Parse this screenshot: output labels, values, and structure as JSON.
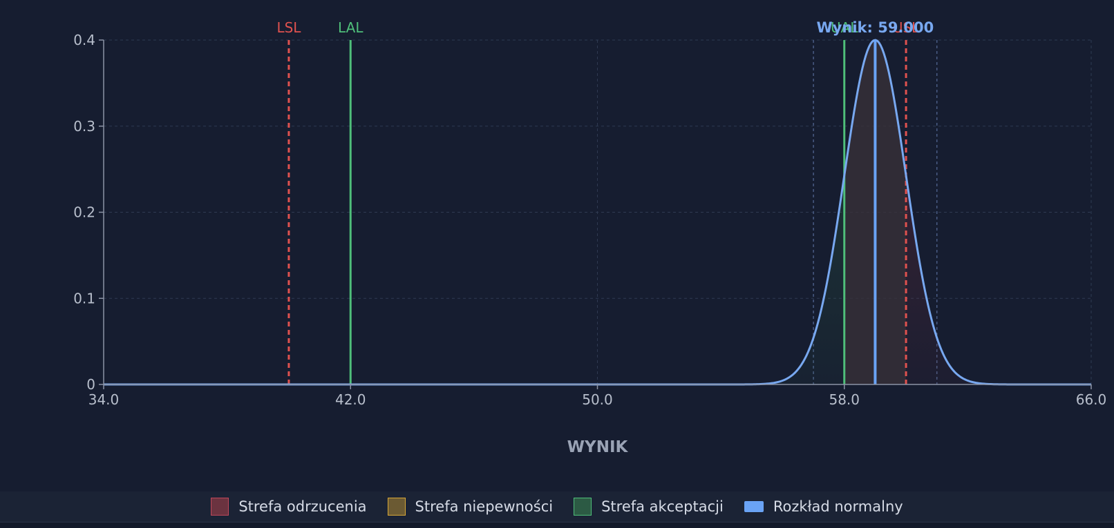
{
  "chart_data": {
    "type": "line",
    "title": "",
    "xlabel": "WYNIK",
    "ylabel": "",
    "xlim": [
      34,
      66
    ],
    "ylim": [
      0,
      0.4
    ],
    "x_ticks": [
      "34.0",
      "42.0",
      "50.0",
      "58.0",
      "66.0"
    ],
    "x_tick_values": [
      34,
      42,
      50,
      58,
      66
    ],
    "y_ticks": [
      "0",
      "0.1",
      "0.2",
      "0.3",
      "0.4"
    ],
    "y_tick_values": [
      0,
      0.1,
      0.2,
      0.3,
      0.4
    ],
    "grid": true,
    "distribution": {
      "mean": 59.0,
      "sigma": 1.0,
      "peak": 0.4
    },
    "result_label": "Wynik: 59.000",
    "reference_lines": [
      {
        "label": "LSL",
        "x": 40.0,
        "style": "dashed",
        "color": "#e0524f"
      },
      {
        "label": "LAL",
        "x": 42.0,
        "style": "solid",
        "color": "#4fbf7a"
      },
      {
        "label": "UAL",
        "x": 58.0,
        "style": "solid",
        "color": "#4fbf7a"
      },
      {
        "label": "USL",
        "x": 60.0,
        "style": "dashed",
        "color": "#e0524f"
      }
    ],
    "uncertainty_bounds": [
      57.0,
      61.0
    ],
    "legend": {
      "placement": "bottom",
      "items": [
        {
          "label": "Strefa odrzucenia",
          "fill": "#6b3340",
          "border": "#c0485a",
          "shape": "box"
        },
        {
          "label": "Strefa niepewności",
          "fill": "#6b5a33",
          "border": "#d8a838",
          "shape": "box"
        },
        {
          "label": "Strefa akceptacji",
          "fill": "#2c5a44",
          "border": "#4fbf7a",
          "shape": "box"
        },
        {
          "label": "Rozkład normalny",
          "fill": "#6aa3f5",
          "border": "#6aa3f5",
          "shape": "solid"
        }
      ]
    }
  },
  "colors": {
    "background": "#161d30",
    "grid": "#2f3a52",
    "axis": "#8b93a5",
    "tick_text": "#b8bfcc",
    "curve": "#78a8f0",
    "mean_line": "#6aa3f5",
    "result_text": "#78a8f0",
    "xlabel_text": "#9aa3b5"
  }
}
